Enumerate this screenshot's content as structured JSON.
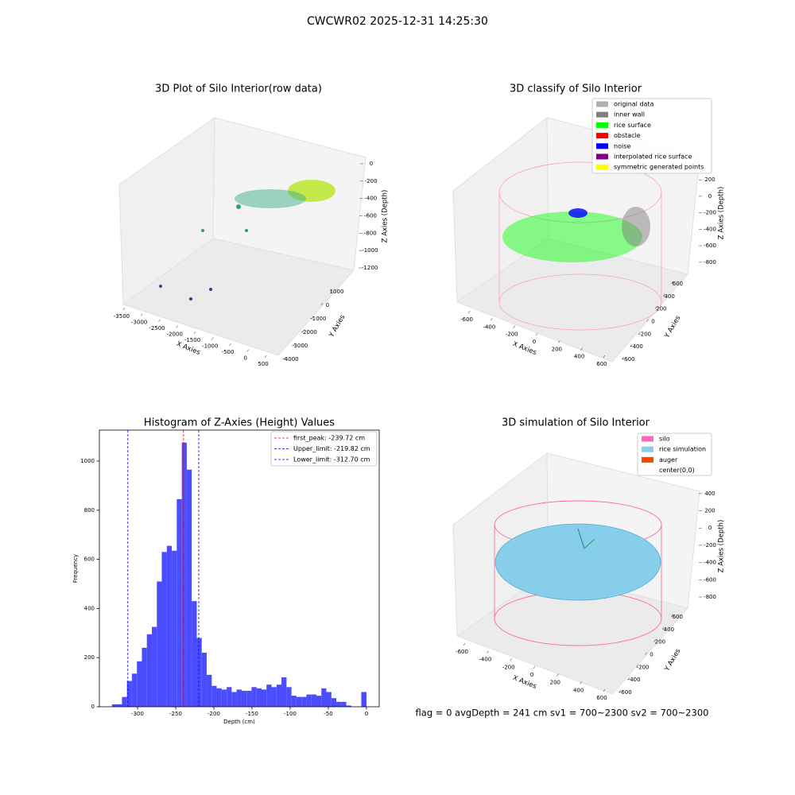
{
  "suptitle": "CWCWR02 2025-12-31 14:25:30",
  "footer": "flag = 0     avgDepth = 241 cm  sv1 = 700~2300  sv2 = 700~2300",
  "chart_data": [
    {
      "type": "scatter3d",
      "title": "3D Plot of Silo Interior(row data)",
      "xlabel": "X Axies",
      "ylabel": "Y Axies",
      "zlabel": "Z Axies (Depth)",
      "xlim": [
        -3600,
        600
      ],
      "ylim": [
        -4300,
        1300
      ],
      "zlim": [
        -1250,
        50
      ],
      "xticks": [
        -3500,
        -3000,
        -2500,
        -2000,
        -1500,
        -1000,
        -500,
        0,
        500
      ],
      "yticks": [
        -4000,
        -3000,
        -2000,
        -1000,
        0,
        1000
      ],
      "zticks": [
        -1200,
        -1000,
        -800,
        -600,
        -400,
        -200,
        0
      ]
    },
    {
      "type": "scatter3d",
      "title": "3D classify of Silo Interior",
      "xlabel": "X Axies",
      "ylabel": "Y Axies",
      "zlabel": "Z Axies (Depth)",
      "xlim": [
        -650,
        650
      ],
      "ylim": [
        -650,
        650
      ],
      "zlim": [
        -850,
        250
      ],
      "xticks": [
        -600,
        -400,
        -200,
        0,
        200,
        400,
        600
      ],
      "yticks": [
        -600,
        -400,
        -200,
        0,
        200,
        400,
        600
      ],
      "zticks": [
        -800,
        -600,
        -400,
        -200,
        0,
        200
      ],
      "legend": [
        {
          "name": "original data",
          "color": "#b0b0b0"
        },
        {
          "name": "inner wall",
          "color": "#808080"
        },
        {
          "name": "rice surface",
          "color": "#00ff00"
        },
        {
          "name": "obstacle",
          "color": "#ff0000"
        },
        {
          "name": "noise",
          "color": "#0000ff"
        },
        {
          "name": "interpolated rice surface",
          "color": "#800080"
        },
        {
          "name": "symmetric generated points",
          "color": "#ffff00"
        }
      ]
    },
    {
      "type": "histogram",
      "title": "Histogram of Z-Axies (Height) Values",
      "xlabel": "Depth (cm)",
      "ylabel": "Frequency",
      "color": "#4c4cff",
      "bins": [
        -333.5,
        -327.0,
        -320.4,
        -313.9,
        -307.4,
        -300.8,
        -294.3,
        -287.8,
        -281.2,
        -274.7,
        -268.2,
        -261.6,
        -255.1,
        -248.6,
        -242.0,
        -235.5,
        -229.0,
        -222.4,
        -215.9,
        -209.4,
        -202.8,
        -196.3,
        -189.8,
        -183.2,
        -176.7,
        -170.2,
        -163.6,
        -157.1,
        -150.6,
        -144.0,
        -137.5,
        -131.0,
        -124.4,
        -117.9,
        -111.4,
        -104.8,
        -98.3,
        -91.8,
        -85.2,
        -78.7,
        -72.2,
        -65.6,
        -59.1,
        -52.6,
        -46.0,
        -39.5,
        -33.0,
        -26.4,
        -19.9,
        -13.4,
        -6.8,
        0
      ],
      "counts": [
        10,
        10,
        40,
        105,
        135,
        185,
        240,
        295,
        325,
        510,
        630,
        655,
        635,
        845,
        1075,
        965,
        430,
        280,
        220,
        130,
        85,
        75,
        70,
        80,
        60,
        70,
        65,
        65,
        80,
        75,
        70,
        90,
        80,
        90,
        120,
        80,
        45,
        40,
        40,
        50,
        50,
        45,
        75,
        60,
        35,
        20,
        20,
        5,
        0,
        0,
        60
      ],
      "lines": [
        {
          "name": "first_peak: -239.72 cm",
          "value": -239.72,
          "color": "#ff0000"
        },
        {
          "name": "Upper_limit: -219.82 cm",
          "value": -219.82,
          "color": "#0000ff"
        },
        {
          "name": "Lower_limit: -312.70 cm",
          "value": -312.7,
          "color": "#0000ff"
        }
      ],
      "xlim": [
        -350,
        16.7
      ],
      "ylim": [
        0,
        1126
      ],
      "xticks": [
        -300,
        -250,
        -200,
        -150,
        -100,
        -50,
        0
      ],
      "yticks": [
        0,
        200,
        400,
        600,
        800,
        1000
      ]
    },
    {
      "type": "scatter3d",
      "title": "3D simulation of Silo Interior",
      "xlabel": "X Axies",
      "ylabel": "Y Axies",
      "zlabel": "Z Axies (Depth)",
      "xlim": [
        -650,
        650
      ],
      "ylim": [
        -650,
        650
      ],
      "zlim": [
        -850,
        450
      ],
      "xticks": [
        -600,
        -400,
        -200,
        0,
        200,
        400,
        600
      ],
      "yticks": [
        -600,
        -400,
        -200,
        0,
        200,
        400,
        600
      ],
      "zticks": [
        -800,
        -600,
        -400,
        -200,
        0,
        200,
        400
      ],
      "legend": [
        {
          "name": "silo",
          "color": "#ff69b4"
        },
        {
          "name": "rice simulation",
          "color": "#87ceeb"
        },
        {
          "name": "auger",
          "color": "#ff4500"
        },
        {
          "name": "center(0,0)",
          "color": "#ffffff"
        }
      ]
    }
  ]
}
